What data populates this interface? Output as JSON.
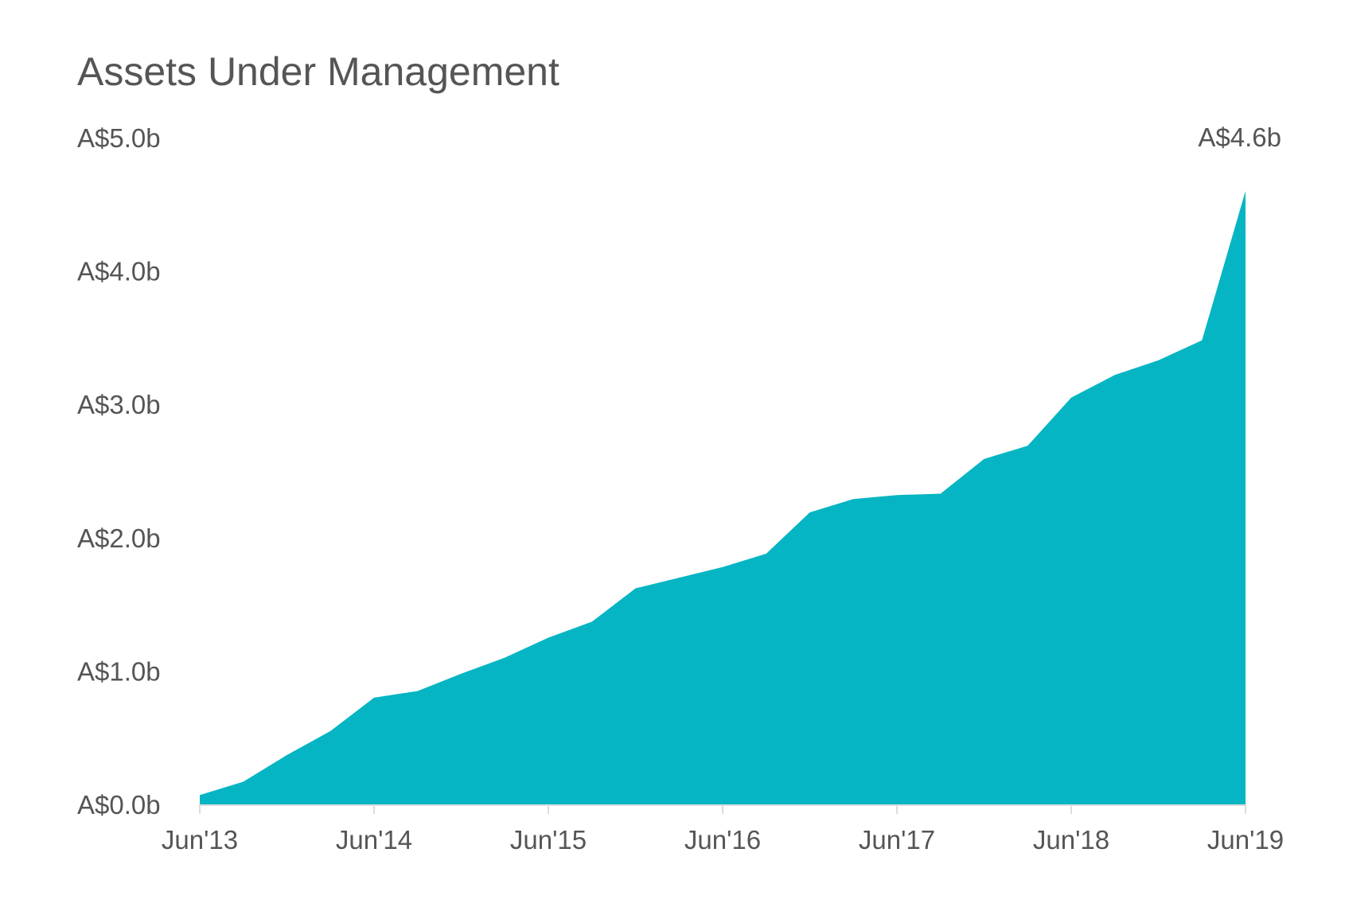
{
  "chart_data": {
    "type": "area",
    "title": "Assets Under Management",
    "xlabel": "",
    "ylabel": "",
    "x": [
      "2013-06",
      "2013-09",
      "2013-12",
      "2014-03",
      "2014-06",
      "2014-09",
      "2014-12",
      "2015-03",
      "2015-06",
      "2015-09",
      "2015-12",
      "2016-03",
      "2016-06",
      "2016-09",
      "2016-12",
      "2017-03",
      "2017-06",
      "2017-09",
      "2017-12",
      "2018-03",
      "2018-06",
      "2018-09",
      "2018-12",
      "2019-03",
      "2019-06"
    ],
    "values": [
      0.07,
      0.17,
      0.37,
      0.55,
      0.8,
      0.85,
      0.98,
      1.1,
      1.25,
      1.37,
      1.62,
      1.7,
      1.78,
      1.88,
      2.19,
      2.29,
      2.32,
      2.33,
      2.59,
      2.69,
      3.05,
      3.22,
      3.33,
      3.48,
      4.6
    ],
    "ylim": [
      0,
      5
    ],
    "y_ticks": [
      0,
      1,
      2,
      3,
      4,
      5
    ],
    "y_tick_labels": [
      "A$0.0b",
      "A$1.0b",
      "A$2.0b",
      "A$3.0b",
      "A$4.0b",
      "A$5.0b"
    ],
    "x_ticks": [
      "2013-06",
      "2014-06",
      "2015-06",
      "2016-06",
      "2017-06",
      "2018-06",
      "2019-06"
    ],
    "x_tick_labels": [
      "Jun'13",
      "Jun'14",
      "Jun'15",
      "Jun'16",
      "Jun'17",
      "Jun'18",
      "Jun'19"
    ],
    "annotation": {
      "x": "2019-06",
      "label": "A$4.6b"
    },
    "grid": false,
    "legend": "none",
    "fill_color": "#05b5c3",
    "axis_color": "#dddddd",
    "text_color": "#555555"
  }
}
